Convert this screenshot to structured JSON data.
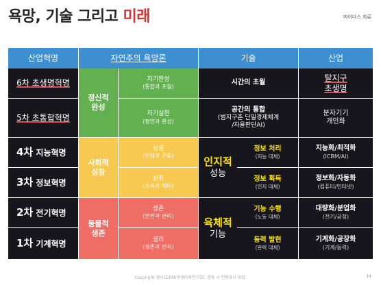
{
  "title": {
    "prefix": "욕망, 기술 그리고 ",
    "highlight": "미래"
  },
  "brand": "마이다스 자료",
  "headers": {
    "revolution": "산업혁명",
    "desire": "자연주의 욕망론",
    "technology": "기술",
    "industry": "산업"
  },
  "revolutions": {
    "r6": "6차 초생명혁명",
    "r5": "5차 초통합혁명",
    "r4": {
      "num": "4차",
      "label": " 지능혁명"
    },
    "r3": {
      "num": "3차",
      "label": " 정보혁명"
    },
    "r2": {
      "num": "2차",
      "label": " 전기혁명"
    },
    "r1": {
      "num": "1차",
      "label": " 기계혁명"
    }
  },
  "desire_groups": {
    "spiritual": [
      "정신적",
      "완성"
    ],
    "social": [
      "사회적",
      "성장"
    ],
    "animal": [
      "동물적",
      "생존"
    ]
  },
  "desires": {
    "self_completion": {
      "main": "자기완성",
      "sub": "(통합과 초월)"
    },
    "self_realization": {
      "main": "자기실현",
      "sub": "(평안과 완성)"
    },
    "success": {
      "main": "성공",
      "sub": "(인정과 존중)"
    },
    "fun": {
      "main": "성취",
      "sub": "(소속과 재미)"
    },
    "life": {
      "main": "생존",
      "sub": "(안전과 편리)"
    },
    "physio": {
      "main": "생리",
      "sub": "(생존과 번식)"
    }
  },
  "technology": {
    "transcend_time": "시간의 초월",
    "space_integration": {
      "title": "공간의 통합",
      "l1": "(범지구촌 단일경제체계",
      "l2": "/자율판단AI)"
    },
    "cognitive_group": {
      "main": "인지적",
      "sub": "성능"
    },
    "physical_group": {
      "main": "육체적",
      "sub": "기능"
    },
    "info_processing": {
      "main": "정보 처리",
      "sub": "(지능 대체)"
    },
    "info_acquisition": {
      "main": "정보 획득",
      "sub": "(인지 대체)"
    },
    "motion_execution": {
      "main": "기능 수행",
      "sub": "(노동 대체)"
    },
    "power_generation": {
      "main": "동력 발현",
      "sub": "(완력 대체)"
    }
  },
  "industry": {
    "dejigu": [
      "탈지구",
      "초생명"
    ],
    "molecular": [
      "분자기기",
      "개인화"
    ],
    "intelligence": {
      "main": "지능화/최적화",
      "sub": "(ICBM/AI)"
    },
    "informatization": {
      "main": "정보화/자동화",
      "sub": "(컴퓨터/인터넷)"
    },
    "mass_production": {
      "main": "대량화/분업화",
      "sub": "(전기/공정)"
    },
    "mechanization": {
      "main": "기계화/공장화",
      "sub": "(기계/동력)"
    }
  },
  "footer": "Copyright 생시CERN(생생미래연구회). 협동 시 인용표시 요망.",
  "page_number": "14",
  "colors": {
    "header_blue": "#3d8fd0",
    "dark": "#16161c",
    "green": "#62b04f",
    "yellow": "#f8c950",
    "red": "#ee6e66",
    "highlight_yellow": "#ffe400",
    "title_red": "#d63333"
  }
}
